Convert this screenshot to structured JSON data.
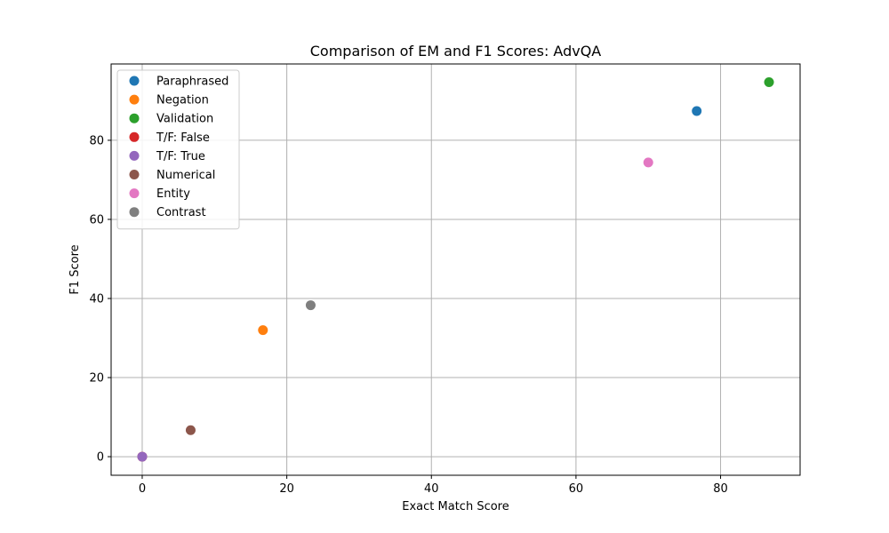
{
  "chart_data": {
    "type": "scatter",
    "title": "Comparison of EM and F1 Scores: AdvQA",
    "xlabel": "Exact Match Score",
    "ylabel": "F1 Score",
    "xlim": [
      -4.3,
      91.0
    ],
    "ylim": [
      -4.7,
      99.3
    ],
    "xticks": [
      0,
      20,
      40,
      60,
      80
    ],
    "yticks": [
      0,
      20,
      40,
      60,
      80
    ],
    "grid": true,
    "legend_position": "top-left",
    "series": [
      {
        "name": "Paraphrased",
        "color": "#1f77b4",
        "x": [
          76.7
        ],
        "y": [
          87.4
        ]
      },
      {
        "name": "Negation",
        "color": "#ff7f0e",
        "x": [
          16.7
        ],
        "y": [
          32.0
        ]
      },
      {
        "name": "Validation",
        "color": "#2ca02c",
        "x": [
          86.7
        ],
        "y": [
          94.7
        ]
      },
      {
        "name": "T/F: False",
        "color": "#d62728",
        "x": [
          0.0
        ],
        "y": [
          0.0
        ]
      },
      {
        "name": "T/F: True",
        "color": "#9467bd",
        "x": [
          0.0
        ],
        "y": [
          0.0
        ]
      },
      {
        "name": "Numerical",
        "color": "#8c564b",
        "x": [
          6.7
        ],
        "y": [
          6.7
        ]
      },
      {
        "name": "Entity",
        "color": "#e377c2",
        "x": [
          70.0
        ],
        "y": [
          74.4
        ]
      },
      {
        "name": "Contrast",
        "color": "#7f7f7f",
        "x": [
          23.3
        ],
        "y": [
          38.3
        ]
      }
    ]
  }
}
